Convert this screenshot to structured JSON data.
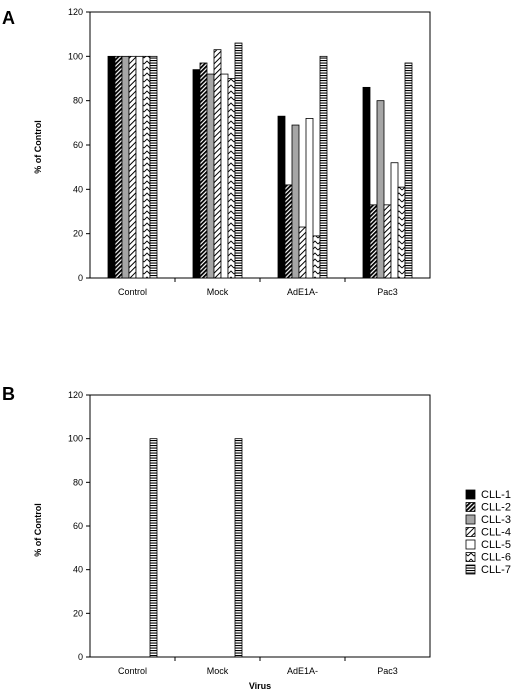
{
  "colors": {
    "axis": "#000000",
    "plot_bg": "#ffffff",
    "cll3_fill": "#a6a6a6",
    "cll7_fill": "#8c8c8c"
  },
  "chart_data": [
    {
      "type": "bar",
      "panel": "A",
      "categories": [
        "Control",
        "Mock",
        "AdE1A-",
        "Pac3"
      ],
      "ylabel": "% of Control",
      "xlabel": "",
      "ylim": [
        0,
        120
      ],
      "yticks": [
        0,
        20,
        40,
        60,
        80,
        100,
        120
      ],
      "grid": false,
      "series": [
        {
          "name": "CLL-1",
          "pattern": "solid-black",
          "values": [
            100,
            94,
            73,
            86
          ]
        },
        {
          "name": "CLL-2",
          "pattern": "dense-diagonal",
          "values": [
            100,
            97,
            42,
            33
          ]
        },
        {
          "name": "CLL-3",
          "pattern": "solid-gray",
          "values": [
            100,
            92,
            69,
            80
          ]
        },
        {
          "name": "CLL-4",
          "pattern": "light-diagonal",
          "values": [
            100,
            103,
            23,
            33
          ]
        },
        {
          "name": "CLL-5",
          "pattern": "white",
          "values": [
            100,
            92,
            72,
            52
          ]
        },
        {
          "name": "CLL-6",
          "pattern": "zigzag",
          "values": [
            100,
            90,
            19,
            41
          ]
        },
        {
          "name": "CLL-7",
          "pattern": "horizontal-lines",
          "values": [
            100,
            106,
            100,
            97
          ]
        }
      ]
    },
    {
      "type": "bar",
      "panel": "B",
      "categories": [
        "Control",
        "Mock",
        "AdE1A-",
        "Pac3"
      ],
      "ylabel": "% of Control",
      "xlabel": "Virus",
      "ylim": [
        0,
        120
      ],
      "yticks": [
        0,
        20,
        40,
        60,
        80,
        100,
        120
      ],
      "grid": false,
      "series": [
        {
          "name": "CLL-1",
          "pattern": "solid-black",
          "values": [
            0,
            0,
            0,
            0
          ]
        },
        {
          "name": "CLL-2",
          "pattern": "dense-diagonal",
          "values": [
            0,
            0,
            0,
            0
          ]
        },
        {
          "name": "CLL-3",
          "pattern": "solid-gray",
          "values": [
            0,
            0,
            0,
            0
          ]
        },
        {
          "name": "CLL-4",
          "pattern": "light-diagonal",
          "values": [
            0,
            0,
            0,
            0
          ]
        },
        {
          "name": "CLL-5",
          "pattern": "white",
          "values": [
            0,
            0,
            0,
            0
          ]
        },
        {
          "name": "CLL-6",
          "pattern": "zigzag",
          "values": [
            0,
            0,
            0,
            0
          ]
        },
        {
          "name": "CLL-7",
          "pattern": "horizontal-lines",
          "values": [
            100,
            100,
            0,
            0
          ]
        }
      ],
      "legend_placement": "right"
    }
  ]
}
